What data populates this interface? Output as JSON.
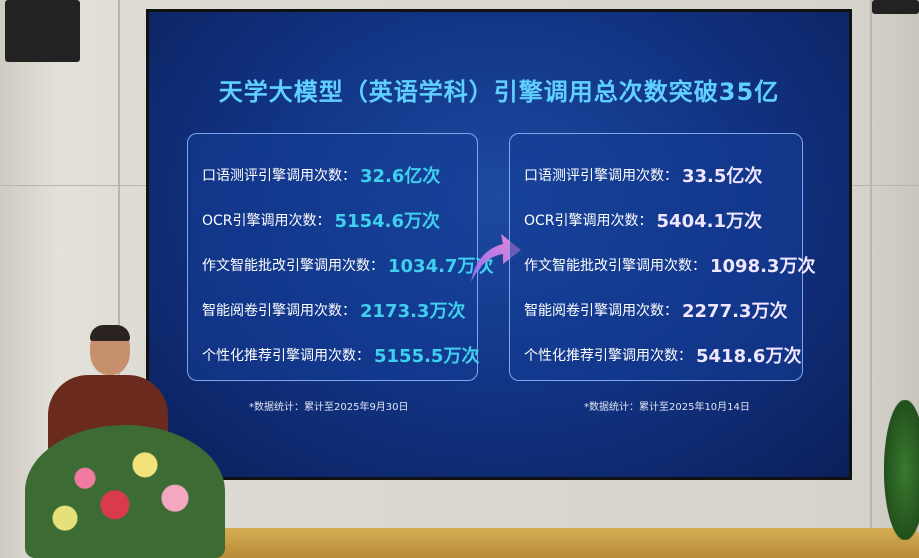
{
  "slide": {
    "title": "天学大模型（英语学科）引擎调用总次数突破35亿",
    "before": {
      "rows": [
        {
          "label": "口语测评引擎调用次数：",
          "value": "32.6亿次"
        },
        {
          "label": "OCR引擎调用次数：",
          "value": "5154.6万次"
        },
        {
          "label": "作文智能批改引擎调用次数：",
          "value": "1034.7万次"
        },
        {
          "label": "智能阅卷引擎调用次数：",
          "value": "2173.3万次"
        },
        {
          "label": "个性化推荐引擎调用次数：",
          "value": "5155.5万次"
        }
      ],
      "note": "*数据统计：累计至2025年9月30日"
    },
    "after": {
      "rows": [
        {
          "label": "口语测评引擎调用次数：",
          "value": "33.5亿次"
        },
        {
          "label": "OCR引擎调用次数：",
          "value": "5404.1万次"
        },
        {
          "label": "作文智能批改引擎调用次数：",
          "value": "1098.3万次"
        },
        {
          "label": "智能阅卷引擎调用次数：",
          "value": "2277.3万次"
        },
        {
          "label": "个性化推荐引擎调用次数：",
          "value": "5418.6万次"
        }
      ],
      "note": "*数据统计：累计至2025年10月14日"
    },
    "colors": {
      "title": "#5fd0ff",
      "before_values": "#3fd0ee",
      "after_values": "#f1e6ff",
      "background": "#123587"
    },
    "arrow_icon": "curved-arrow-right"
  }
}
